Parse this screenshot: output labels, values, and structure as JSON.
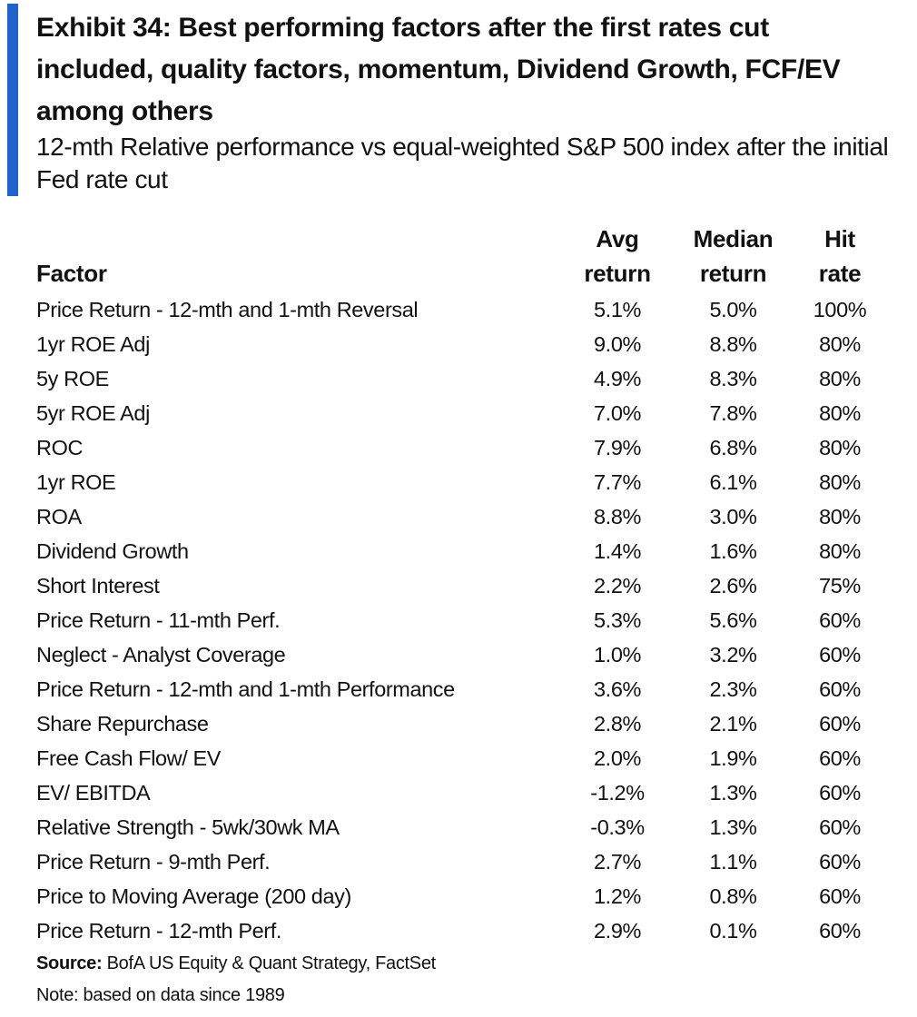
{
  "exhibit": {
    "title": "Exhibit 34: Best performing factors after the first rates cut included, quality factors, momentum, Dividend Growth, FCF/EV among others",
    "subtitle": "12-mth Relative performance vs equal-weighted S&P 500 index after the initial Fed rate cut",
    "accent_color": "#1f63c8"
  },
  "table": {
    "headers": {
      "factor": "Factor",
      "avg_line1": "Avg",
      "avg_line2": "return",
      "median_line1": "Median",
      "median_line2": "return",
      "hit_line1": "Hit",
      "hit_line2": "rate"
    },
    "rows": [
      {
        "factor": "Price Return - 12-mth and 1-mth Reversal",
        "avg": "5.1%",
        "median": "5.0%",
        "hit": "100%"
      },
      {
        "factor": "1yr ROE Adj",
        "avg": "9.0%",
        "median": "8.8%",
        "hit": "80%"
      },
      {
        "factor": "5y ROE",
        "avg": "4.9%",
        "median": "8.3%",
        "hit": "80%"
      },
      {
        "factor": "5yr ROE Adj",
        "avg": "7.0%",
        "median": "7.8%",
        "hit": "80%"
      },
      {
        "factor": "ROC",
        "avg": "7.9%",
        "median": "6.8%",
        "hit": "80%"
      },
      {
        "factor": "1yr ROE",
        "avg": "7.7%",
        "median": "6.1%",
        "hit": "80%"
      },
      {
        "factor": "ROA",
        "avg": "8.8%",
        "median": "3.0%",
        "hit": "80%"
      },
      {
        "factor": "Dividend Growth",
        "avg": "1.4%",
        "median": "1.6%",
        "hit": "80%"
      },
      {
        "factor": "Short Interest",
        "avg": "2.2%",
        "median": "2.6%",
        "hit": "75%"
      },
      {
        "factor": "Price Return - 11-mth Perf.",
        "avg": "5.3%",
        "median": "5.6%",
        "hit": "60%"
      },
      {
        "factor": "Neglect - Analyst Coverage",
        "avg": "1.0%",
        "median": "3.2%",
        "hit": "60%"
      },
      {
        "factor": "Price Return - 12-mth and 1-mth Performance",
        "avg": "3.6%",
        "median": "2.3%",
        "hit": "60%"
      },
      {
        "factor": "Share Repurchase",
        "avg": "2.8%",
        "median": "2.1%",
        "hit": "60%"
      },
      {
        "factor": "Free Cash Flow/ EV",
        "avg": "2.0%",
        "median": "1.9%",
        "hit": "60%"
      },
      {
        "factor": "EV/ EBITDA",
        "avg": "-1.2%",
        "median": "1.3%",
        "hit": "60%"
      },
      {
        "factor": "Relative Strength - 5wk/30wk MA",
        "avg": "-0.3%",
        "median": "1.3%",
        "hit": "60%"
      },
      {
        "factor": "Price Return - 9-mth Perf.",
        "avg": "2.7%",
        "median": "1.1%",
        "hit": "60%"
      },
      {
        "factor": "Price to Moving Average (200 day)",
        "avg": "1.2%",
        "median": "0.8%",
        "hit": "60%"
      },
      {
        "factor": "Price Return - 12-mth Perf.",
        "avg": "2.9%",
        "median": "0.1%",
        "hit": "60%"
      }
    ]
  },
  "footer": {
    "source_label": "Source:",
    "source_text": "BofA US Equity & Quant Strategy, FactSet",
    "note": "Note: based on data since 1989"
  }
}
